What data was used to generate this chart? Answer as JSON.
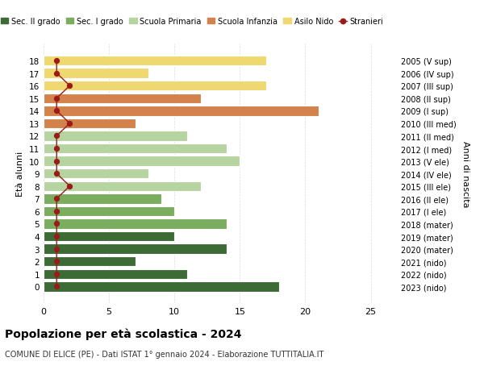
{
  "ages": [
    18,
    17,
    16,
    15,
    14,
    13,
    12,
    11,
    10,
    9,
    8,
    7,
    6,
    5,
    4,
    3,
    2,
    1,
    0
  ],
  "right_labels": [
    "2005 (V sup)",
    "2006 (IV sup)",
    "2007 (III sup)",
    "2008 (II sup)",
    "2009 (I sup)",
    "2010 (III med)",
    "2011 (II med)",
    "2012 (I med)",
    "2013 (V ele)",
    "2014 (IV ele)",
    "2015 (III ele)",
    "2016 (II ele)",
    "2017 (I ele)",
    "2018 (mater)",
    "2019 (mater)",
    "2020 (mater)",
    "2021 (nido)",
    "2022 (nido)",
    "2023 (nido)"
  ],
  "bar_values": [
    18,
    11,
    7,
    14,
    10,
    14,
    10,
    9,
    12,
    8,
    15,
    14,
    11,
    7,
    21,
    12,
    17,
    8,
    17
  ],
  "bar_colors": [
    "#3d6b35",
    "#3d6b35",
    "#3d6b35",
    "#3d6b35",
    "#3d6b35",
    "#7aad5e",
    "#7aad5e",
    "#7aad5e",
    "#b5d4a0",
    "#b5d4a0",
    "#b5d4a0",
    "#b5d4a0",
    "#b5d4a0",
    "#d2824a",
    "#d2824a",
    "#d2824a",
    "#f0d870",
    "#f0d870",
    "#f0d870"
  ],
  "stranieri_values": [
    1,
    1,
    1,
    1,
    1,
    1,
    1,
    1,
    2,
    1,
    1,
    1,
    1,
    2,
    1,
    1,
    2,
    1,
    1
  ],
  "stranieri_color": "#9b1a1a",
  "legend_labels": [
    "Sec. II grado",
    "Sec. I grado",
    "Scuola Primaria",
    "Scuola Infanzia",
    "Asilo Nido",
    "Stranieri"
  ],
  "legend_colors": [
    "#3d6b35",
    "#7aad5e",
    "#b5d4a0",
    "#d2824a",
    "#f0d870",
    "#9b1a1a"
  ],
  "ylabel_left": "Età alunni",
  "ylabel_right": "Anni di nascita",
  "title": "Popolazione per età scolastica - 2024",
  "subtitle": "COMUNE DI ELICE (PE) - Dati ISTAT 1° gennaio 2024 - Elaborazione TUTTITALIA.IT",
  "xlim": [
    0,
    27
  ],
  "xticks": [
    0,
    5,
    10,
    15,
    20,
    25
  ],
  "background_color": "#ffffff",
  "grid_color": "#cccccc"
}
